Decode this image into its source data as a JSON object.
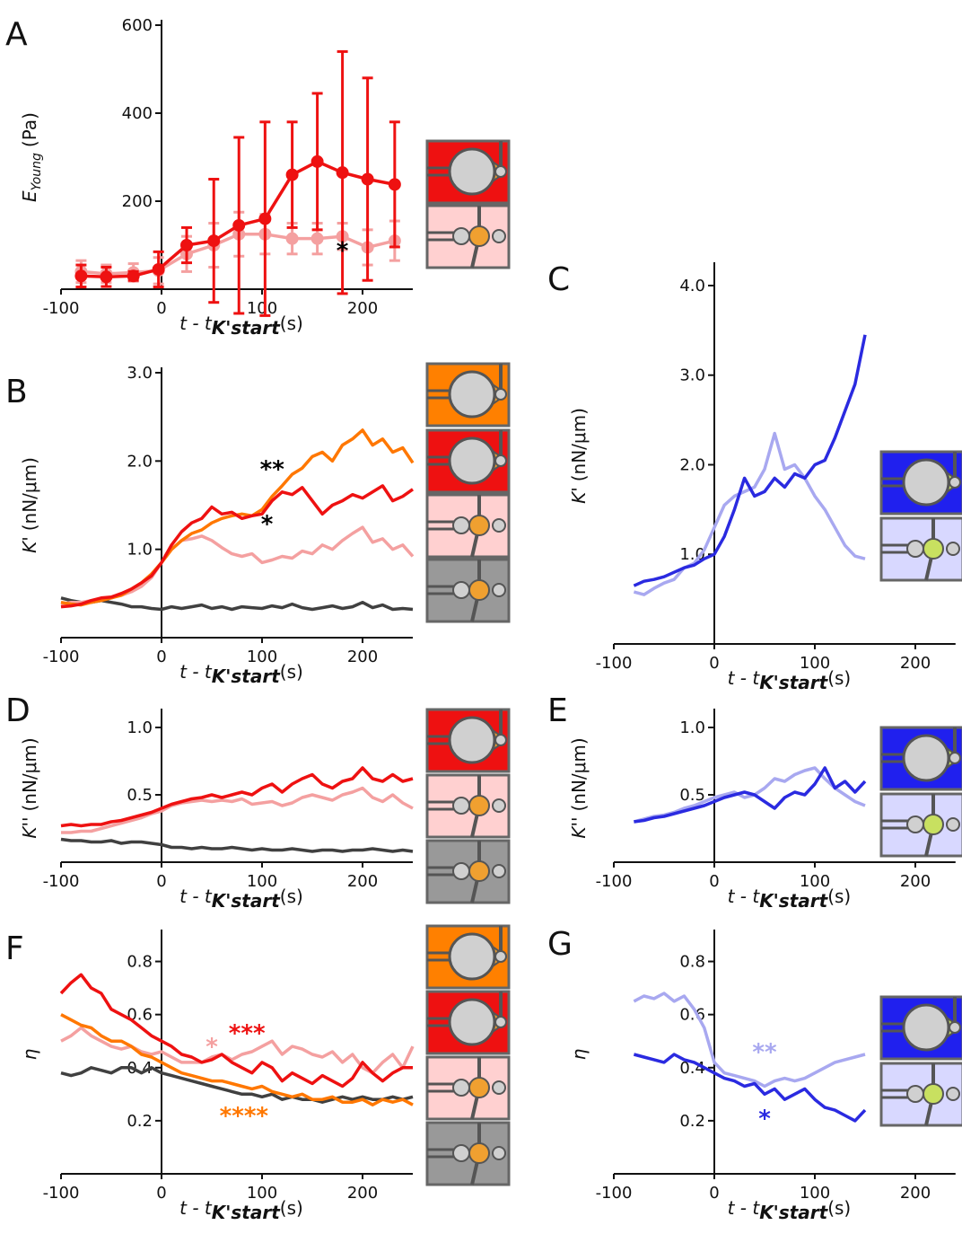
{
  "chart_data": [
    {
      "type": "line",
      "panel": "A",
      "markers": true,
      "xlabel": {
        "main": "t - t",
        "sub": "K'start",
        "unit": "(s)"
      },
      "ylabel": {
        "main": "E",
        "sub": "Young",
        "unit": "(Pa)"
      },
      "x": [
        -80,
        -55,
        -28,
        -3,
        25,
        52,
        77,
        103,
        130,
        155,
        180,
        205,
        232
      ],
      "xlim": [
        -100,
        250
      ],
      "xticks": [
        -100,
        0,
        100,
        200
      ],
      "ylim": [
        0,
        600
      ],
      "yticks": [
        200,
        400,
        600
      ],
      "series": [
        {
          "color": "#f4a0a0",
          "values": [
            40,
            35,
            38,
            42,
            80,
            100,
            125,
            125,
            115,
            115,
            120,
            95,
            110
          ],
          "errors": [
            25,
            20,
            20,
            30,
            40,
            50,
            50,
            45,
            35,
            35,
            30,
            40,
            45
          ]
        },
        {
          "color": "#ee1111",
          "values": [
            30,
            28,
            30,
            45,
            100,
            110,
            145,
            160,
            260,
            290,
            265,
            250,
            238
          ],
          "errors": [
            25,
            22,
            10,
            40,
            40,
            140,
            200,
            220,
            120,
            155,
            275,
            230,
            142
          ]
        }
      ],
      "annotations": [
        {
          "text": "*",
          "color": "#000000"
        }
      ]
    },
    {
      "type": "line",
      "panel": "B",
      "xlabel": {
        "main": "t - t",
        "sub": "K'start",
        "unit": "(s)"
      },
      "ylabel": {
        "main": "K'",
        "unit": "(nN/μm)"
      },
      "x": [
        -100,
        -90,
        -80,
        -70,
        -60,
        -50,
        -40,
        -30,
        -20,
        -10,
        0,
        10,
        20,
        30,
        40,
        50,
        60,
        70,
        80,
        90,
        100,
        110,
        120,
        130,
        140,
        150,
        160,
        170,
        180,
        190,
        200,
        210,
        220,
        230,
        240,
        250
      ],
      "xlim": [
        -100,
        250
      ],
      "xticks": [
        -100,
        0,
        100,
        200
      ],
      "ylim": [
        0,
        3
      ],
      "yticks": [
        {
          "value": 1,
          "label": "1.0"
        },
        {
          "value": 2,
          "label": "2.0"
        },
        {
          "value": 3,
          "label": "3.0"
        }
      ],
      "series": [
        {
          "color": "#404040",
          "values": [
            0.45,
            0.42,
            0.4,
            0.4,
            0.42,
            0.4,
            0.38,
            0.35,
            0.35,
            0.33,
            0.32,
            0.35,
            0.33,
            0.35,
            0.37,
            0.33,
            0.35,
            0.32,
            0.35,
            0.34,
            0.33,
            0.36,
            0.34,
            0.38,
            0.34,
            0.32,
            0.34,
            0.36,
            0.33,
            0.35,
            0.4,
            0.34,
            0.37,
            0.32,
            0.33,
            0.32
          ]
        },
        {
          "color": "#f4a0a0",
          "values": [
            0.38,
            0.4,
            0.4,
            0.42,
            0.44,
            0.45,
            0.48,
            0.52,
            0.58,
            0.68,
            0.85,
            1.0,
            1.1,
            1.12,
            1.15,
            1.1,
            1.02,
            0.95,
            0.92,
            0.95,
            0.85,
            0.88,
            0.92,
            0.9,
            0.98,
            0.95,
            1.05,
            1.0,
            1.1,
            1.18,
            1.25,
            1.08,
            1.12,
            1.0,
            1.05,
            0.92
          ]
        },
        {
          "color": "#ff7700",
          "values": [
            0.4,
            0.38,
            0.37,
            0.4,
            0.42,
            0.45,
            0.48,
            0.55,
            0.62,
            0.72,
            0.85,
            1.0,
            1.1,
            1.18,
            1.22,
            1.3,
            1.35,
            1.38,
            1.4,
            1.38,
            1.45,
            1.6,
            1.72,
            1.85,
            1.92,
            2.05,
            2.1,
            2.0,
            2.18,
            2.25,
            2.35,
            2.18,
            2.25,
            2.1,
            2.15,
            1.98
          ]
        },
        {
          "color": "#ee1111",
          "values": [
            0.35,
            0.36,
            0.38,
            0.42,
            0.45,
            0.46,
            0.5,
            0.55,
            0.62,
            0.7,
            0.85,
            1.05,
            1.2,
            1.3,
            1.35,
            1.48,
            1.4,
            1.42,
            1.35,
            1.38,
            1.4,
            1.55,
            1.65,
            1.62,
            1.7,
            1.55,
            1.4,
            1.5,
            1.55,
            1.62,
            1.58,
            1.65,
            1.72,
            1.55,
            1.6,
            1.68
          ]
        }
      ],
      "annotations": [
        {
          "text": "**",
          "color": "#000000"
        },
        {
          "text": "*",
          "color": "#000000"
        }
      ]
    },
    {
      "type": "line",
      "panel": "C",
      "xlabel": {
        "main": "t - t",
        "sub": "K'start",
        "unit": "(s)"
      },
      "ylabel": {
        "main": "K'",
        "unit": "(nN/μm)"
      },
      "x": [
        -80,
        -70,
        -60,
        -50,
        -40,
        -30,
        -20,
        -10,
        0,
        10,
        20,
        30,
        40,
        50,
        60,
        70,
        80,
        90,
        100,
        110,
        120,
        130,
        140,
        150
      ],
      "xlim": [
        -100,
        240
      ],
      "xticks": [
        -100,
        0,
        100,
        200
      ],
      "ylim": [
        0,
        4.2
      ],
      "yticks": [
        {
          "value": 1,
          "label": "1.0"
        },
        {
          "value": 2,
          "label": "2.0"
        },
        {
          "value": 3,
          "label": "3.0"
        },
        {
          "value": 4,
          "label": "4.0"
        }
      ],
      "series": [
        {
          "color": "#a8a8f0",
          "values": [
            0.58,
            0.55,
            0.62,
            0.68,
            0.72,
            0.85,
            0.9,
            1.05,
            1.3,
            1.55,
            1.65,
            1.7,
            1.75,
            1.95,
            2.35,
            1.95,
            2.0,
            1.85,
            1.65,
            1.5,
            1.3,
            1.1,
            0.98,
            0.95
          ]
        },
        {
          "color": "#2a2ae0",
          "values": [
            0.65,
            0.7,
            0.72,
            0.75,
            0.8,
            0.85,
            0.88,
            0.95,
            1.0,
            1.2,
            1.5,
            1.85,
            1.65,
            1.7,
            1.85,
            1.75,
            1.9,
            1.85,
            2.0,
            2.05,
            2.3,
            2.6,
            2.9,
            3.45
          ]
        }
      ],
      "annotations": []
    },
    {
      "type": "line",
      "panel": "D",
      "xlabel": {
        "main": "t - t",
        "sub": "K'start",
        "unit": "(s)"
      },
      "ylabel": {
        "main": "K''",
        "unit": "(nN/μm)"
      },
      "x": [
        -100,
        -90,
        -80,
        -70,
        -60,
        -50,
        -40,
        -30,
        -20,
        -10,
        0,
        10,
        20,
        30,
        40,
        50,
        60,
        70,
        80,
        90,
        100,
        110,
        120,
        130,
        140,
        150,
        160,
        170,
        180,
        190,
        200,
        210,
        220,
        230,
        240,
        250
      ],
      "xlim": [
        -100,
        250
      ],
      "xticks": [
        -100,
        0,
        100,
        200
      ],
      "ylim": [
        0,
        1.1
      ],
      "yticks": [
        0.5,
        {
          "value": 1,
          "label": "1.0"
        }
      ],
      "series": [
        {
          "color": "#404040",
          "values": [
            0.17,
            0.16,
            0.16,
            0.15,
            0.15,
            0.16,
            0.14,
            0.15,
            0.15,
            0.14,
            0.13,
            0.11,
            0.11,
            0.1,
            0.11,
            0.1,
            0.1,
            0.11,
            0.1,
            0.09,
            0.1,
            0.09,
            0.09,
            0.1,
            0.09,
            0.08,
            0.09,
            0.09,
            0.08,
            0.09,
            0.09,
            0.1,
            0.09,
            0.08,
            0.09,
            0.08
          ]
        },
        {
          "color": "#f4a0a0",
          "values": [
            0.22,
            0.22,
            0.23,
            0.23,
            0.25,
            0.27,
            0.29,
            0.31,
            0.33,
            0.36,
            0.38,
            0.42,
            0.44,
            0.45,
            0.46,
            0.45,
            0.46,
            0.45,
            0.47,
            0.43,
            0.44,
            0.45,
            0.42,
            0.44,
            0.48,
            0.5,
            0.48,
            0.46,
            0.5,
            0.52,
            0.55,
            0.48,
            0.45,
            0.5,
            0.44,
            0.4
          ]
        },
        {
          "color": "#ee1111",
          "values": [
            0.27,
            0.28,
            0.27,
            0.28,
            0.28,
            0.3,
            0.31,
            0.33,
            0.35,
            0.37,
            0.4,
            0.43,
            0.45,
            0.47,
            0.48,
            0.5,
            0.48,
            0.5,
            0.52,
            0.5,
            0.55,
            0.58,
            0.52,
            0.58,
            0.62,
            0.65,
            0.58,
            0.55,
            0.6,
            0.62,
            0.7,
            0.62,
            0.6,
            0.65,
            0.6,
            0.62
          ]
        }
      ],
      "annotations": []
    },
    {
      "type": "line",
      "panel": "E",
      "xlabel": {
        "main": "t - t",
        "sub": "K'start",
        "unit": "(s)"
      },
      "ylabel": {
        "main": "K''",
        "unit": "(nN/μm)"
      },
      "x": [
        -80,
        -70,
        -60,
        -50,
        -40,
        -30,
        -20,
        -10,
        0,
        10,
        20,
        30,
        40,
        50,
        60,
        70,
        80,
        90,
        100,
        110,
        120,
        130,
        140,
        150
      ],
      "xlim": [
        -100,
        240
      ],
      "xticks": [
        -100,
        0,
        100,
        200
      ],
      "ylim": [
        0,
        1.1
      ],
      "yticks": [
        0.5,
        {
          "value": 1,
          "label": "1.0"
        }
      ],
      "series": [
        {
          "color": "#a8a8f0",
          "values": [
            0.3,
            0.32,
            0.34,
            0.35,
            0.37,
            0.4,
            0.42,
            0.45,
            0.48,
            0.5,
            0.52,
            0.48,
            0.5,
            0.55,
            0.62,
            0.6,
            0.65,
            0.68,
            0.7,
            0.62,
            0.55,
            0.5,
            0.45,
            0.42
          ]
        },
        {
          "color": "#2a2ae0",
          "values": [
            0.3,
            0.31,
            0.33,
            0.34,
            0.36,
            0.38,
            0.4,
            0.42,
            0.45,
            0.48,
            0.5,
            0.52,
            0.5,
            0.45,
            0.4,
            0.48,
            0.52,
            0.5,
            0.58,
            0.7,
            0.55,
            0.6,
            0.52,
            0.6
          ]
        }
      ],
      "annotations": []
    },
    {
      "type": "line",
      "panel": "F",
      "xlabel": {
        "main": "t - t",
        "sub": "K'start",
        "unit": "(s)"
      },
      "ylabel": {
        "main": "η"
      },
      "x": [
        -100,
        -90,
        -80,
        -70,
        -60,
        -50,
        -40,
        -30,
        -20,
        -10,
        0,
        10,
        20,
        30,
        40,
        50,
        60,
        70,
        80,
        90,
        100,
        110,
        120,
        130,
        140,
        150,
        160,
        170,
        180,
        190,
        200,
        210,
        220,
        230,
        240,
        250
      ],
      "xlim": [
        -100,
        250
      ],
      "xticks": [
        -100,
        0,
        100,
        200
      ],
      "ylim": [
        0,
        0.9
      ],
      "yticks": [
        0.2,
        0.4,
        0.6,
        0.8
      ],
      "series": [
        {
          "color": "#404040",
          "values": [
            0.38,
            0.37,
            0.38,
            0.4,
            0.39,
            0.38,
            0.4,
            0.4,
            0.38,
            0.4,
            0.38,
            0.37,
            0.36,
            0.35,
            0.34,
            0.33,
            0.32,
            0.31,
            0.3,
            0.3,
            0.29,
            0.3,
            0.28,
            0.29,
            0.28,
            0.28,
            0.27,
            0.28,
            0.29,
            0.28,
            0.29,
            0.28,
            0.28,
            0.29,
            0.28,
            0.29
          ]
        },
        {
          "color": "#f4a0a0",
          "values": [
            0.5,
            0.52,
            0.55,
            0.52,
            0.5,
            0.48,
            0.47,
            0.48,
            0.46,
            0.45,
            0.46,
            0.44,
            0.42,
            0.42,
            0.42,
            0.44,
            0.45,
            0.43,
            0.45,
            0.46,
            0.48,
            0.5,
            0.45,
            0.48,
            0.47,
            0.45,
            0.44,
            0.46,
            0.42,
            0.45,
            0.4,
            0.38,
            0.42,
            0.45,
            0.4,
            0.48
          ]
        },
        {
          "color": "#ff7700",
          "values": [
            0.6,
            0.58,
            0.56,
            0.55,
            0.52,
            0.5,
            0.5,
            0.48,
            0.45,
            0.44,
            0.42,
            0.4,
            0.38,
            0.37,
            0.36,
            0.35,
            0.35,
            0.34,
            0.33,
            0.32,
            0.33,
            0.31,
            0.3,
            0.29,
            0.3,
            0.28,
            0.28,
            0.29,
            0.27,
            0.27,
            0.28,
            0.26,
            0.28,
            0.27,
            0.28,
            0.26
          ]
        },
        {
          "color": "#ee1111",
          "values": [
            0.68,
            0.72,
            0.75,
            0.7,
            0.68,
            0.62,
            0.6,
            0.58,
            0.55,
            0.52,
            0.5,
            0.48,
            0.45,
            0.44,
            0.42,
            0.43,
            0.45,
            0.42,
            0.4,
            0.38,
            0.42,
            0.4,
            0.35,
            0.38,
            0.36,
            0.34,
            0.37,
            0.35,
            0.33,
            0.36,
            0.42,
            0.38,
            0.35,
            0.38,
            0.4,
            0.4
          ]
        }
      ],
      "annotations": [
        {
          "text": "***",
          "color": "#ee1111"
        },
        {
          "text": "*",
          "color": "#f4a0a0"
        },
        {
          "text": "****",
          "color": "#ff7700"
        }
      ]
    },
    {
      "type": "line",
      "panel": "G",
      "xlabel": {
        "main": "t - t",
        "sub": "K'start",
        "unit": "(s)"
      },
      "ylabel": {
        "main": "η"
      },
      "x": [
        -80,
        -70,
        -60,
        -50,
        -40,
        -30,
        -20,
        -10,
        0,
        10,
        20,
        30,
        40,
        50,
        60,
        70,
        80,
        90,
        100,
        110,
        120,
        130,
        140,
        150
      ],
      "xlim": [
        -100,
        240
      ],
      "xticks": [
        -100,
        0,
        100,
        200
      ],
      "ylim": [
        0,
        0.9
      ],
      "yticks": [
        0.2,
        0.4,
        0.6,
        0.8
      ],
      "series": [
        {
          "color": "#a8a8f0",
          "values": [
            0.65,
            0.67,
            0.66,
            0.68,
            0.65,
            0.67,
            0.62,
            0.55,
            0.42,
            0.38,
            0.37,
            0.36,
            0.35,
            0.33,
            0.35,
            0.36,
            0.35,
            0.36,
            0.38,
            0.4,
            0.42,
            0.43,
            0.44,
            0.45
          ]
        },
        {
          "color": "#2a2ae0",
          "values": [
            0.45,
            0.44,
            0.43,
            0.42,
            0.45,
            0.43,
            0.42,
            0.4,
            0.38,
            0.36,
            0.35,
            0.33,
            0.34,
            0.3,
            0.32,
            0.28,
            0.3,
            0.32,
            0.28,
            0.25,
            0.24,
            0.22,
            0.2,
            0.24
          ]
        }
      ],
      "annotations": [
        {
          "text": "**",
          "color": "#a8a8f0"
        },
        {
          "text": "*",
          "color": "#2a2ae0"
        }
      ]
    }
  ]
}
